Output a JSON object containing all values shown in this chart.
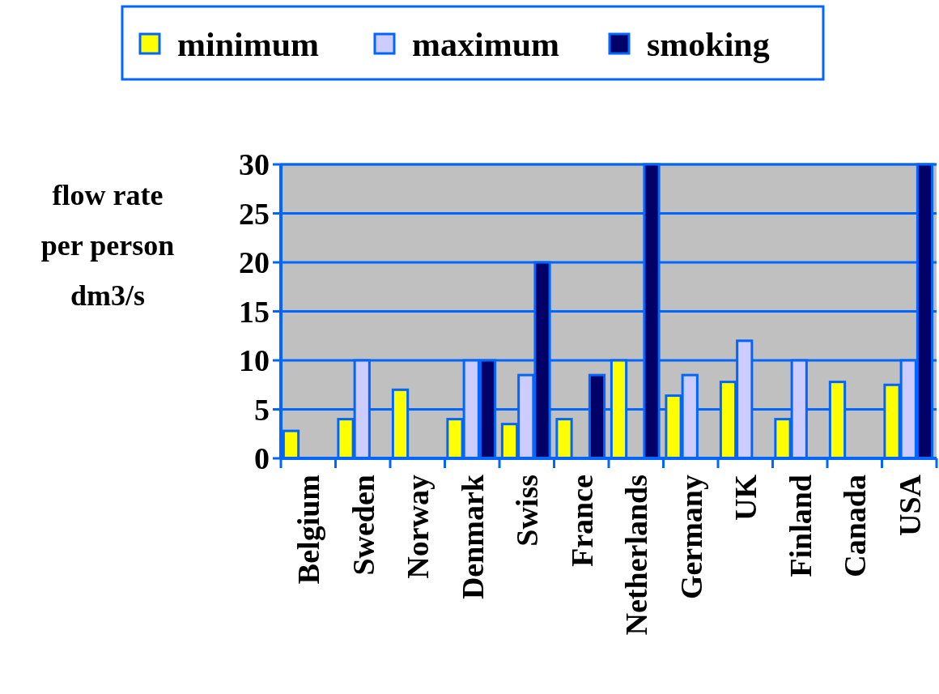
{
  "chart_data": {
    "type": "bar",
    "ylabel": "flow rate\nper person\ndm3/s",
    "categories": [
      "Belgium",
      "Sweden",
      "Norway",
      "Denmark",
      "Swiss",
      "France",
      "Netherlands",
      "Germany",
      "UK",
      "Finland",
      "Canada",
      "USA"
    ],
    "series": [
      {
        "name": "minimum",
        "color": "#ffff00",
        "values": [
          2.8,
          4,
          7,
          4,
          3.5,
          4,
          10,
          6.4,
          7.8,
          4,
          7.8,
          7.5
        ]
      },
      {
        "name": "maximum",
        "color": "#ccccff",
        "values": [
          null,
          10,
          null,
          10,
          8.5,
          null,
          null,
          8.5,
          12,
          10,
          null,
          10
        ]
      },
      {
        "name": "smoking",
        "color": "#000066",
        "values": [
          null,
          null,
          null,
          10,
          20,
          8.5,
          30,
          null,
          null,
          null,
          null,
          30
        ]
      }
    ],
    "ylim": [
      0,
      30
    ],
    "yticks": [
      0,
      5,
      10,
      15,
      20,
      25,
      30
    ],
    "grid": "y",
    "legend": "top"
  }
}
